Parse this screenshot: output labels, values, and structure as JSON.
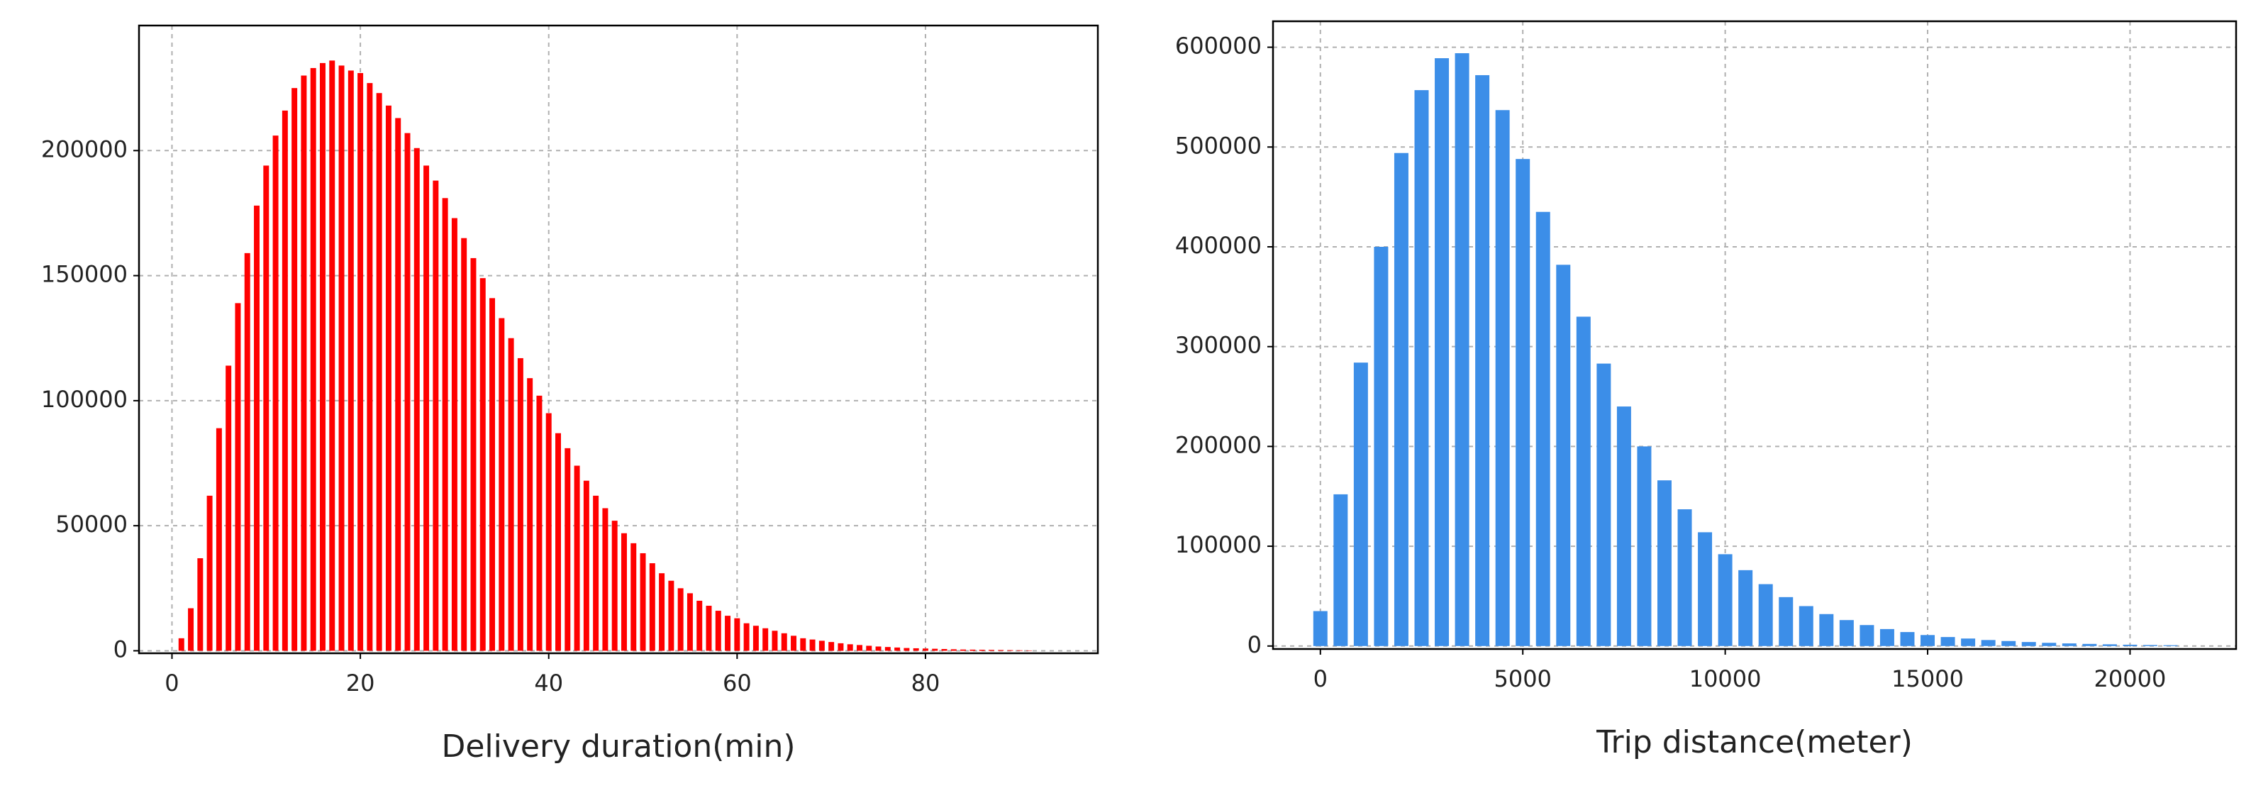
{
  "chart_data": [
    {
      "type": "bar",
      "x_label": "Delivery duration(min)",
      "color": "#ff0000",
      "grid": true,
      "x": [
        1,
        2,
        3,
        4,
        5,
        6,
        7,
        8,
        9,
        10,
        11,
        12,
        13,
        14,
        15,
        16,
        17,
        18,
        19,
        20,
        21,
        22,
        23,
        24,
        25,
        26,
        27,
        28,
        29,
        30,
        31,
        32,
        33,
        34,
        35,
        36,
        37,
        38,
        39,
        40,
        41,
        42,
        43,
        44,
        45,
        46,
        47,
        48,
        49,
        50,
        51,
        52,
        53,
        54,
        55,
        56,
        57,
        58,
        59,
        60,
        61,
        62,
        63,
        64,
        65,
        66,
        67,
        68,
        69,
        70,
        71,
        72,
        73,
        74,
        75,
        76,
        77,
        78,
        79,
        80,
        81,
        82,
        83,
        84,
        85,
        86,
        87,
        88,
        89,
        90,
        91
      ],
      "values": [
        5000,
        17000,
        37000,
        62000,
        89000,
        114000,
        139000,
        159000,
        178000,
        194000,
        206000,
        216000,
        225000,
        230000,
        233000,
        235000,
        236000,
        234000,
        232000,
        231000,
        227000,
        223000,
        218000,
        213000,
        207000,
        201000,
        194000,
        188000,
        181000,
        173000,
        165000,
        157000,
        149000,
        141000,
        133000,
        125000,
        117000,
        109000,
        102000,
        95000,
        87000,
        81000,
        74000,
        68000,
        62000,
        57000,
        52000,
        47000,
        43000,
        39000,
        35000,
        31000,
        28000,
        25000,
        23000,
        20000,
        18000,
        16000,
        14000,
        13000,
        11000,
        10000,
        9000,
        8000,
        7000,
        6000,
        5000,
        4500,
        4000,
        3500,
        3000,
        2600,
        2300,
        2000,
        1700,
        1500,
        1300,
        1100,
        1000,
        900,
        800,
        700,
        600,
        500,
        450,
        400,
        350,
        300,
        250,
        200,
        150
      ],
      "xlim": [
        -3.5,
        98.3
      ],
      "xticks": [
        0,
        20,
        40,
        60,
        80
      ],
      "ylim": [
        -1000,
        250000
      ],
      "yticks": [
        0,
        50000,
        100000,
        150000,
        200000
      ]
    },
    {
      "type": "bar",
      "x_label": "Trip distance(meter)",
      "color": "#3c8ee8",
      "grid": true,
      "x": [
        0,
        500,
        1000,
        1500,
        2000,
        2500,
        3000,
        3500,
        4000,
        4500,
        5000,
        5500,
        6000,
        6500,
        7000,
        7500,
        8000,
        8500,
        9000,
        9500,
        10000,
        10500,
        11000,
        11500,
        12000,
        12500,
        13000,
        13500,
        14000,
        14500,
        15000,
        15500,
        16000,
        16500,
        17000,
        17500,
        18000,
        18500,
        19000,
        19500,
        20000,
        20500,
        21000
      ],
      "values": [
        35000,
        152000,
        284000,
        400000,
        494000,
        557000,
        589000,
        594000,
        572000,
        537000,
        488000,
        435000,
        382000,
        330000,
        283000,
        240000,
        200000,
        166000,
        137000,
        114000,
        92000,
        76000,
        62000,
        49000,
        40000,
        32000,
        26000,
        21000,
        17000,
        14000,
        11000,
        9000,
        7500,
        6000,
        5000,
        4000,
        3200,
        2600,
        2100,
        1700,
        1300,
        1000,
        800
      ],
      "xlim": [
        -1170,
        22620
      ],
      "xticks": [
        0,
        5000,
        10000,
        15000,
        20000
      ],
      "ylim": [
        -3000,
        626000
      ],
      "yticks": [
        0,
        100000,
        200000,
        300000,
        400000,
        500000,
        600000
      ]
    }
  ]
}
